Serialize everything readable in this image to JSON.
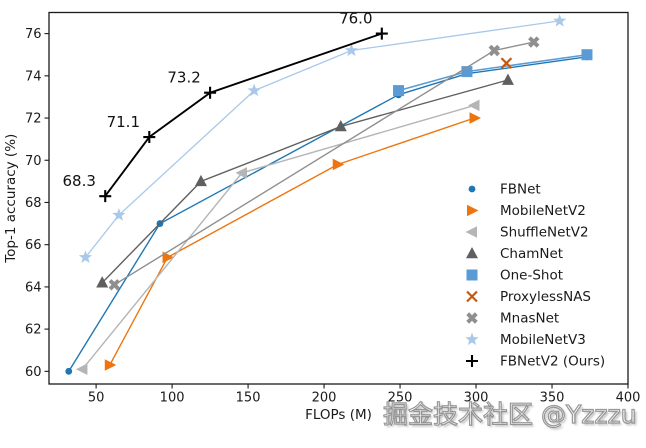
{
  "watermark": {
    "text": "掘金技术社区 @Yzzzu"
  },
  "chart_data": {
    "type": "line",
    "title": "",
    "xlabel": "FLOPs (M)",
    "ylabel": "Top-1 accuracy (%)",
    "xlim": [
      19,
      400
    ],
    "ylim": [
      59.4,
      77
    ],
    "xticks": [
      50,
      100,
      150,
      200,
      250,
      300,
      350,
      400
    ],
    "yticks": [
      60,
      62,
      64,
      66,
      68,
      70,
      72,
      74,
      76
    ],
    "grid": false,
    "legend_position": "lower right",
    "axis_color": "#1a1a1a",
    "series": [
      {
        "name": "FBNet",
        "marker": "circle",
        "color": "#1f77b4",
        "line": true,
        "lw": 1.4,
        "points": [
          [
            32,
            60.0
          ],
          [
            92,
            67.0
          ],
          [
            249,
            73.1
          ],
          [
            294,
            74.1
          ],
          [
            373,
            74.9
          ]
        ]
      },
      {
        "name": "MobileNetV2",
        "marker": "triangle-right",
        "color": "#ee750e",
        "line": true,
        "lw": 1.4,
        "points": [
          [
            59,
            60.3
          ],
          [
            97,
            65.4
          ],
          [
            209,
            69.8
          ],
          [
            299,
            72.0
          ]
        ]
      },
      {
        "name": "ShuffleNetV2",
        "marker": "triangle-left",
        "color": "#b5b5b5",
        "line": true,
        "lw": 1.4,
        "points": [
          [
            41,
            60.1
          ],
          [
            146,
            69.4
          ],
          [
            299,
            72.6
          ]
        ]
      },
      {
        "name": "ChamNet",
        "marker": "triangle-up",
        "color": "#5f5f5f",
        "line": true,
        "lw": 1.4,
        "points": [
          [
            54,
            64.2
          ],
          [
            119,
            69.0
          ],
          [
            211,
            71.6
          ],
          [
            321,
            73.8
          ]
        ]
      },
      {
        "name": "One-Shot",
        "marker": "square",
        "color": "#5b9bd5",
        "line": true,
        "lw": 1.5,
        "points": [
          [
            249,
            73.3
          ],
          [
            294,
            74.2
          ],
          [
            373,
            75.0
          ]
        ]
      },
      {
        "name": "ProxylessNAS",
        "marker": "x",
        "color": "#c45911",
        "line": false,
        "lw": 1.4,
        "points": [
          [
            320,
            74.6
          ]
        ]
      },
      {
        "name": "MnasNet",
        "marker": "x-bold",
        "color": "#8f8f8f",
        "line": true,
        "lw": 1.4,
        "points": [
          [
            62,
            64.1
          ],
          [
            312,
            75.2
          ],
          [
            338,
            75.6
          ]
        ]
      },
      {
        "name": "MobileNetV3",
        "marker": "star",
        "color": "#a9c9ea",
        "line": true,
        "lw": 1.3,
        "points": [
          [
            43,
            65.4
          ],
          [
            65,
            67.4
          ],
          [
            154,
            73.3
          ],
          [
            218,
            75.2
          ],
          [
            355,
            76.6
          ]
        ]
      },
      {
        "name": "FBNetV2 (Ours)",
        "marker": "plus",
        "color": "#000000",
        "line": true,
        "lw": 1.9,
        "points": [
          [
            56,
            68.3
          ],
          [
            85,
            71.1
          ],
          [
            125,
            73.2
          ],
          [
            238,
            76.0
          ]
        ]
      }
    ],
    "annotations": [
      {
        "text": "68.3",
        "x": 56,
        "y": 68.3
      },
      {
        "text": "71.1",
        "x": 85,
        "y": 71.1
      },
      {
        "text": "73.2",
        "x": 125,
        "y": 73.2
      },
      {
        "text": "76.0",
        "x": 238,
        "y": 76.0
      }
    ]
  }
}
